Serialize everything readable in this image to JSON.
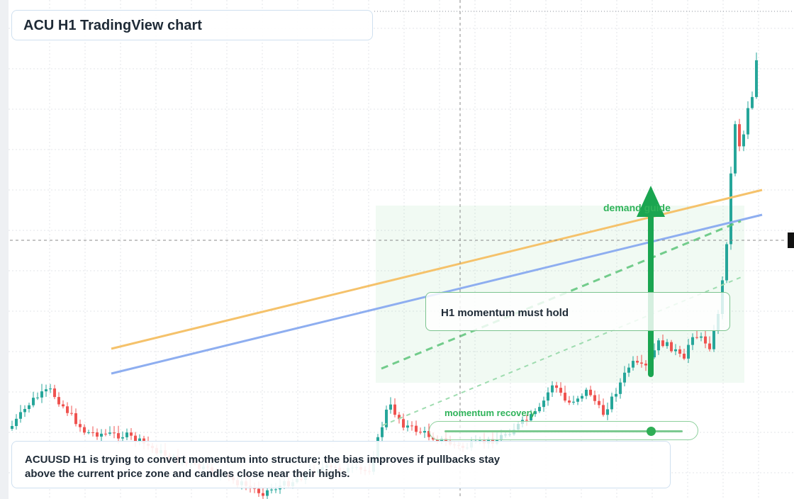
{
  "header": {
    "title": "ACU H1 TradingView chart"
  },
  "annotations": {
    "zone_label": "demand guide",
    "callout": "H1 momentum must hold",
    "slider_label": "momentum recovery"
  },
  "description": "ACUUSD H1 is trying to convert momentum into structure; the bias improves if pullbacks stay above the current price zone and candles close near their highs."
}
